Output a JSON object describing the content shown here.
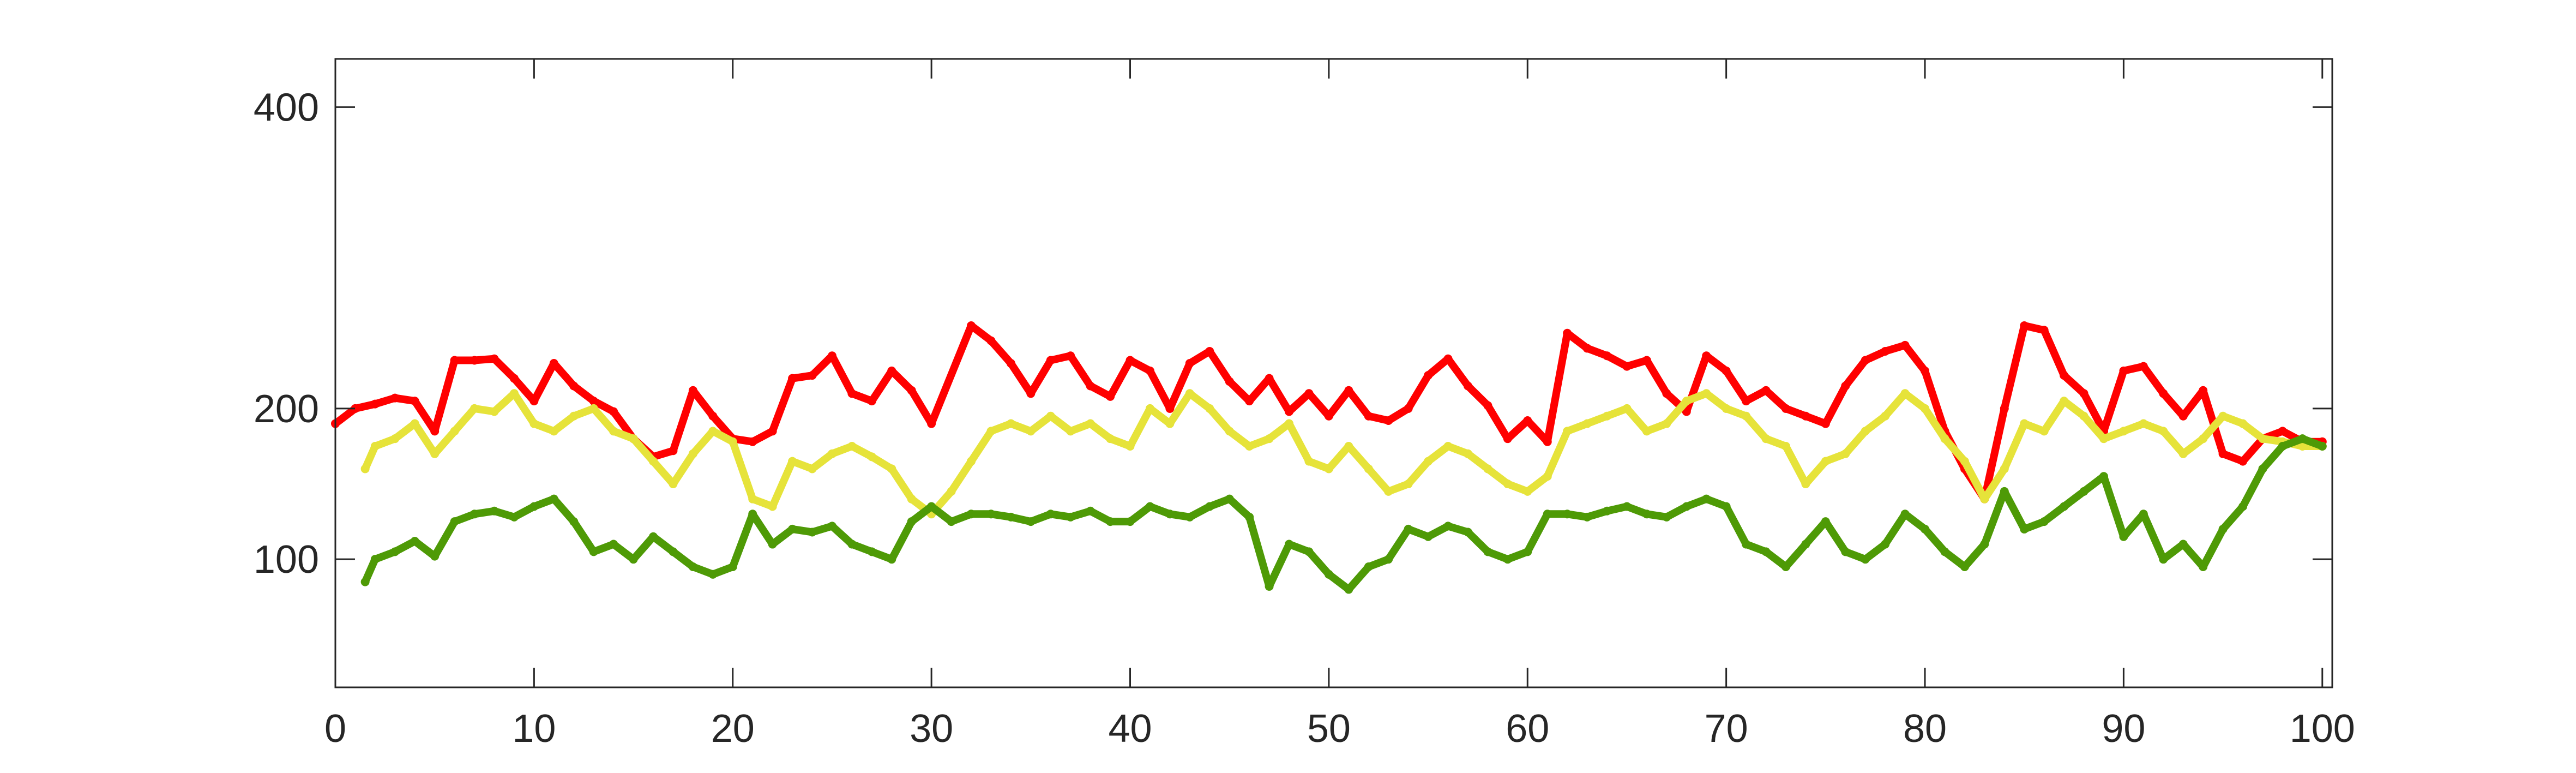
{
  "chart_data": {
    "type": "scatter",
    "title": "",
    "xlabel": "",
    "ylabel": "",
    "xlim": [
      0,
      100.5
    ],
    "ylim": [
      15,
      432
    ],
    "grid": false,
    "box": true,
    "xticks": [
      0,
      10,
      20,
      30,
      40,
      50,
      60,
      70,
      80,
      90,
      100
    ],
    "xtick_labels": [
      "0",
      "10",
      "20",
      "30",
      "40",
      "50",
      "60",
      "70",
      "80",
      "90",
      "100"
    ],
    "yticks": [
      100,
      200,
      400
    ],
    "ytick_labels": [
      "100",
      "200",
      "400"
    ],
    "series": [
      {
        "color": "#ff0000",
        "x": [
          0,
          1,
          2,
          3,
          4,
          5,
          6,
          7,
          8,
          9,
          10,
          11,
          12,
          13,
          14,
          15,
          16,
          17,
          18,
          19,
          20,
          21,
          22,
          23,
          24,
          25,
          26,
          27,
          28,
          29,
          30,
          32,
          33,
          34,
          35,
          36,
          37,
          38,
          39,
          40,
          41,
          42,
          43,
          44,
          45,
          46,
          47,
          48,
          49,
          50,
          51,
          52,
          53,
          54,
          55,
          56,
          57,
          58,
          59,
          60,
          61,
          62,
          63,
          64,
          65,
          66,
          67,
          68,
          69,
          70,
          71,
          72,
          73,
          74,
          75,
          76,
          77,
          78,
          79,
          80,
          81,
          82,
          83,
          84,
          85,
          86,
          87,
          88,
          89,
          90,
          91,
          92,
          93,
          94,
          95,
          96,
          97,
          98,
          99,
          100
        ],
        "y": [
          190,
          200,
          203,
          207,
          205,
          185,
          232,
          232,
          233,
          220,
          205,
          230,
          215,
          205,
          198,
          180,
          168,
          172,
          212,
          195,
          180,
          178,
          185,
          220,
          222,
          235,
          210,
          205,
          225,
          212,
          190,
          255,
          245,
          230,
          210,
          232,
          235,
          215,
          208,
          232,
          225,
          200,
          230,
          238,
          218,
          205,
          220,
          198,
          210,
          195,
          212,
          195,
          192,
          200,
          222,
          233,
          215,
          202,
          180,
          192,
          178,
          250,
          240,
          235,
          228,
          232,
          210,
          198,
          235,
          225,
          205,
          212,
          200,
          195,
          190,
          215,
          232,
          238,
          242,
          225,
          185,
          160,
          140,
          200,
          255,
          252,
          222,
          210,
          185,
          225,
          228,
          210,
          195,
          212,
          170,
          165,
          180,
          185,
          178,
          178
        ]
      },
      {
        "color": "#e6e33a",
        "x": [
          1.5,
          2,
          3,
          4,
          5,
          6,
          7,
          8,
          9,
          10,
          11,
          12,
          13,
          14,
          15,
          16,
          17,
          18,
          19,
          20,
          21,
          22,
          23,
          24,
          25,
          26,
          27,
          28,
          29,
          30,
          31,
          32,
          33,
          34,
          35,
          36,
          37,
          38,
          39,
          40,
          41,
          42,
          43,
          44,
          45,
          46,
          47,
          48,
          49,
          50,
          51,
          52,
          53,
          54,
          55,
          56,
          57,
          58,
          59,
          60,
          61,
          62,
          63,
          64,
          65,
          66,
          67,
          68,
          69,
          70,
          71,
          72,
          73,
          74,
          75,
          76,
          77,
          78,
          79,
          80,
          81,
          82,
          83,
          84,
          85,
          86,
          87,
          88,
          89,
          90,
          91,
          92,
          93,
          94,
          95,
          96,
          97,
          98,
          99,
          100
        ],
        "y": [
          160,
          175,
          180,
          190,
          170,
          185,
          200,
          198,
          210,
          190,
          185,
          195,
          200,
          185,
          180,
          165,
          150,
          170,
          185,
          178,
          140,
          135,
          165,
          160,
          170,
          175,
          168,
          160,
          140,
          130,
          145,
          165,
          185,
          190,
          185,
          195,
          185,
          190,
          180,
          175,
          200,
          190,
          210,
          200,
          185,
          175,
          180,
          190,
          165,
          160,
          175,
          160,
          145,
          150,
          165,
          175,
          170,
          160,
          150,
          145,
          155,
          185,
          190,
          195,
          200,
          185,
          190,
          205,
          210,
          200,
          195,
          180,
          175,
          150,
          165,
          170,
          185,
          195,
          210,
          200,
          180,
          165,
          140,
          160,
          190,
          185,
          205,
          195,
          180,
          185,
          190,
          185,
          170,
          180,
          195,
          190,
          180,
          178,
          175,
          175
        ]
      },
      {
        "color": "#4e9a06",
        "x": [
          1.5,
          2,
          3,
          4,
          5,
          6,
          7,
          8,
          9,
          10,
          11,
          12,
          13,
          14,
          15,
          16,
          17,
          18,
          19,
          20,
          21,
          22,
          23,
          24,
          25,
          26,
          27,
          28,
          29,
          30,
          31,
          32,
          33,
          34,
          35,
          36,
          37,
          38,
          39,
          40,
          41,
          42,
          43,
          44,
          45,
          46,
          47,
          48,
          49,
          50,
          51,
          52,
          53,
          54,
          55,
          56,
          57,
          58,
          59,
          60,
          61,
          62,
          63,
          64,
          65,
          66,
          67,
          68,
          69,
          70,
          71,
          72,
          73,
          74,
          75,
          76,
          77,
          78,
          79,
          80,
          81,
          82,
          83,
          84,
          85,
          86,
          87,
          88,
          89,
          90,
          91,
          92,
          93,
          94,
          95,
          96,
          97,
          98,
          99,
          100
        ],
        "y": [
          85,
          100,
          105,
          112,
          102,
          125,
          130,
          132,
          128,
          135,
          140,
          125,
          105,
          110,
          100,
          115,
          105,
          95,
          90,
          95,
          130,
          110,
          120,
          118,
          122,
          110,
          105,
          100,
          125,
          135,
          125,
          130,
          130,
          128,
          125,
          130,
          128,
          132,
          125,
          125,
          135,
          130,
          128,
          135,
          140,
          128,
          82,
          110,
          105,
          90,
          80,
          95,
          100,
          120,
          115,
          122,
          118,
          105,
          100,
          105,
          130,
          130,
          128,
          132,
          135,
          130,
          128,
          135,
          140,
          135,
          110,
          105,
          95,
          110,
          125,
          105,
          100,
          110,
          130,
          120,
          105,
          95,
          110,
          145,
          120,
          125,
          135,
          145,
          155,
          115,
          130,
          100,
          110,
          95,
          120,
          135,
          160,
          175,
          180,
          175
        ]
      }
    ]
  }
}
